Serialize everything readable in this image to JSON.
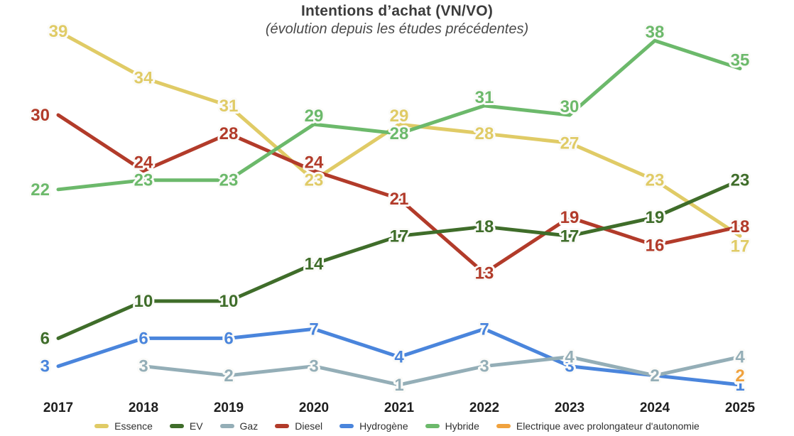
{
  "title": "Intentions d’achat (VN/VO)",
  "subtitle": "(évolution depuis les études précédentes)",
  "chart_data": {
    "type": "line",
    "x": [
      "2017",
      "2018",
      "2019",
      "2020",
      "2021",
      "2022",
      "2023",
      "2024",
      "2025"
    ],
    "series": [
      {
        "name": "Essence",
        "color": "#e0cb66",
        "values": [
          39,
          34,
          31,
          23,
          29,
          28,
          27,
          23,
          17
        ],
        "label_pos": [
          "c",
          "c",
          "c",
          "c",
          "a",
          "c",
          "c",
          "c",
          "b"
        ]
      },
      {
        "name": "EV",
        "color": "#3f6d2a",
        "values": [
          6,
          10,
          10,
          14,
          17,
          18,
          17,
          19,
          23
        ],
        "label_pos": [
          "l",
          "c",
          "c",
          "c",
          "c",
          "c",
          "c",
          "c",
          "c"
        ]
      },
      {
        "name": "Gaz",
        "color": "#94aeb7",
        "values": [
          null,
          3,
          2,
          3,
          1,
          3,
          4,
          2,
          4
        ],
        "label_pos": [
          null,
          "c",
          "c",
          "c",
          "c",
          "c",
          "c",
          "c",
          "c"
        ]
      },
      {
        "name": "Diesel",
        "color": "#b23b2a",
        "values": [
          30,
          24,
          28,
          24,
          21,
          13,
          19,
          16,
          18
        ],
        "label_pos": [
          "l",
          "a",
          "c",
          "a",
          "c",
          "c",
          "c",
          "c",
          "c"
        ]
      },
      {
        "name": "Hydrogène",
        "color": "#4a85dc",
        "values": [
          3,
          6,
          6,
          7,
          4,
          7,
          3,
          2,
          1
        ],
        "label_pos": [
          "l",
          "c",
          "c",
          "c",
          "c",
          "c",
          "c",
          null,
          "c"
        ]
      },
      {
        "name": "Hybride",
        "color": "#6cb96b",
        "values": [
          22,
          23,
          23,
          29,
          28,
          31,
          30,
          38,
          35
        ],
        "label_pos": [
          "l",
          "c",
          "c",
          "a",
          "c",
          "a",
          "a",
          "a",
          "a"
        ]
      },
      {
        "name": "Electrique avec prolongateur d'autonomie",
        "color": "#f0a23e",
        "values": [
          null,
          null,
          null,
          null,
          null,
          null,
          null,
          null,
          2
        ],
        "label_pos": [
          null,
          null,
          null,
          null,
          null,
          null,
          null,
          null,
          "c"
        ]
      }
    ],
    "draw_order": [
      0,
      3,
      5,
      1,
      4,
      2,
      6
    ],
    "title": "Intentions d’achat (VN/VO)",
    "xlabel": "",
    "ylabel": "",
    "ylim": [
      0,
      42
    ],
    "grid": false,
    "legend_position": "bottom"
  }
}
